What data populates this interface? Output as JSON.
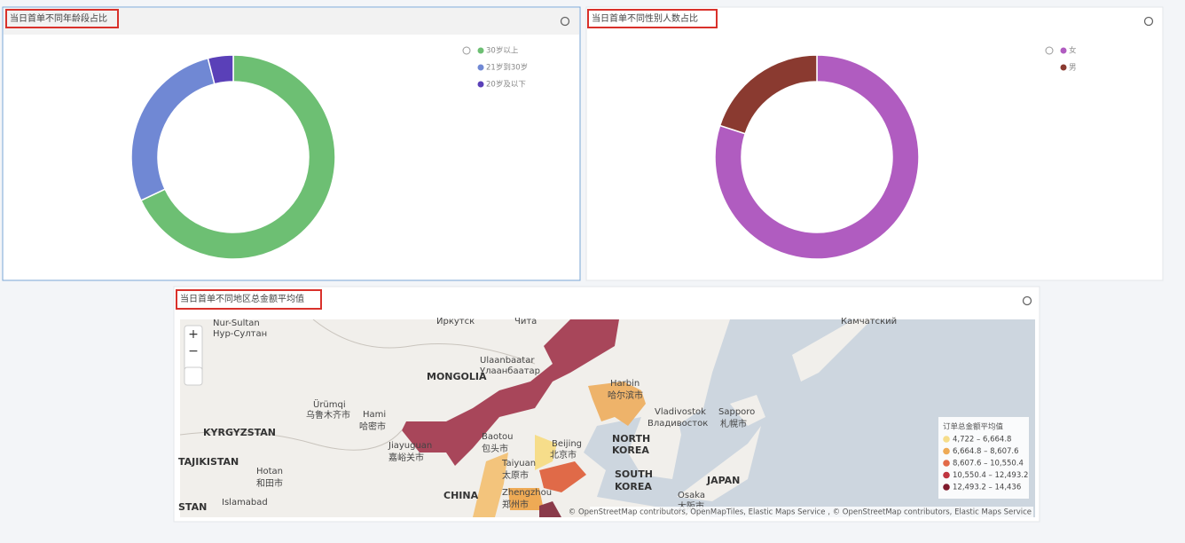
{
  "chart_data": [
    {
      "type": "pie",
      "donut": true,
      "title": "当日首单不同年龄段占比",
      "categories": [
        "30岁以上",
        "21岁到30岁",
        "20岁及以下"
      ],
      "values": [
        68,
        28,
        4
      ],
      "colors": [
        "#6dbf73",
        "#7088d4",
        "#5a40b8"
      ]
    },
    {
      "type": "pie",
      "donut": true,
      "title": "当日首单不同性别人数占比",
      "categories": [
        "女",
        "男"
      ],
      "values": [
        80,
        20
      ],
      "colors": [
        "#b05cc0",
        "#8a3a30"
      ]
    }
  ],
  "map": {
    "title": "当日首单不同地区总金额平均值",
    "legend": {
      "title": "订单总金额平均值",
      "items": [
        {
          "label": "4,722 – 6,664.8",
          "color": "#f6dd8a"
        },
        {
          "label": "6,664.8 – 8,607.6",
          "color": "#eeaa55"
        },
        {
          "label": "8,607.6 – 10,550.4",
          "color": "#e26a48"
        },
        {
          "label": "10,550.4 – 12,493.2",
          "color": "#bf3440"
        },
        {
          "label": "12,493.2 – 14,436",
          "color": "#7f1a2c"
        }
      ]
    },
    "labels": [
      "Nur-Sultan",
      "Нур-Султан",
      "Иркутск",
      "Чита",
      "Камчатский",
      "MONGOLIA",
      "Ulaanbaatar",
      "Улаанбаатар",
      "Harbin",
      "哈尔滨市",
      "Ürümqi",
      "乌鲁木齐市",
      "Hami",
      "哈密市",
      "Vladivostok",
      "Владивосток",
      "Sapporo",
      "札幌市",
      "KYRGYZSTAN",
      "Baotou",
      "包头市",
      "Beijing",
      "北京市",
      "NORTH",
      "KOREA",
      "Jiayuguan",
      "嘉峪关市",
      "TAJIKISTAN",
      "Hotan",
      "和田市",
      "Taiyuan",
      "太原市",
      "SOUTH",
      "KOREA",
      "JAPAN",
      "CHINA",
      "Zhengzhou",
      "郑州市",
      "Osaka",
      "大阪市",
      "Islamabad",
      "STAN"
    ],
    "zoom_in": "+",
    "zoom_out": "−",
    "attribution": "© OpenStreetMap contributors, OpenMapTiles, Elastic Maps Service , © OpenStreetMap contributors, Elastic Maps Service"
  }
}
